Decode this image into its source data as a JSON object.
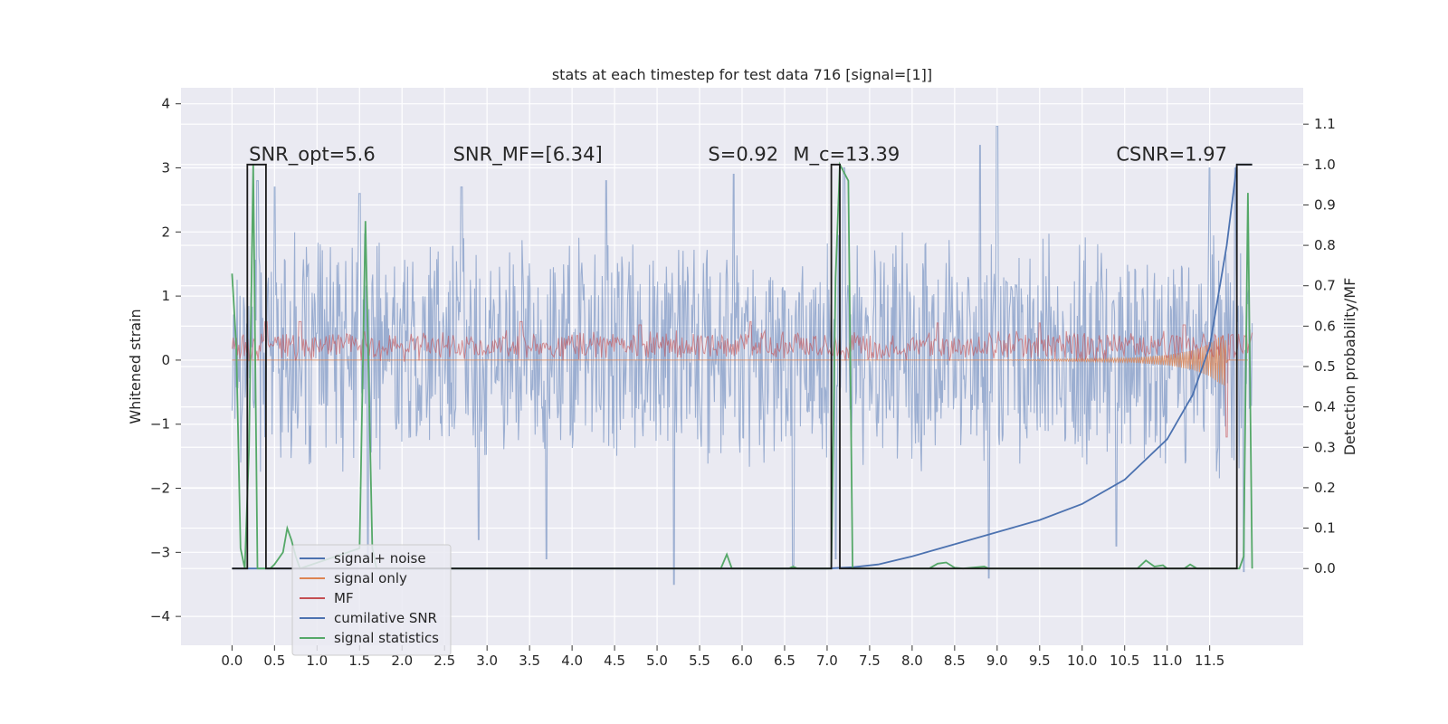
{
  "chart_data": {
    "type": "line",
    "title": "stats at each timestep for test data 716 [signal=[1]]",
    "xlabel": "",
    "ylabel_left": "Whitened strain",
    "ylabel_right": "Detection probability/MF",
    "xlim": [
      -0.6,
      12.6
    ],
    "ylim_left": [
      -4.45,
      4.25
    ],
    "ylim_right": [
      -0.19,
      1.19
    ],
    "x_ticks": [
      0.0,
      0.5,
      1.0,
      1.5,
      2.0,
      2.5,
      3.0,
      3.5,
      4.0,
      4.5,
      5.0,
      5.5,
      6.0,
      6.5,
      7.0,
      7.5,
      8.0,
      8.5,
      9.0,
      9.5,
      10.0,
      10.5,
      11.0,
      11.5
    ],
    "x_tick_labels": [
      "0.0",
      "0.5",
      "1.0",
      "1.5",
      "2.0",
      "2.5",
      "3.0",
      "3.5",
      "4.0",
      "4.5",
      "5.0",
      "5.5",
      "6.0",
      "6.5",
      "7.0",
      "7.5",
      "8.0",
      "8.5",
      "9.0",
      "9.5",
      "10.0",
      "10.5",
      "11.0",
      "11.5"
    ],
    "y_left_ticks": [
      -4,
      -3,
      -2,
      -1,
      0,
      1,
      2,
      3,
      4
    ],
    "y_left_tick_labels": [
      "−4",
      "−3",
      "−2",
      "−1",
      "0",
      "1",
      "2",
      "3",
      "4"
    ],
    "y_right_ticks": [
      0.0,
      0.1,
      0.2,
      0.3,
      0.4,
      0.5,
      0.6,
      0.7,
      0.8,
      0.9,
      1.0,
      1.1
    ],
    "y_right_tick_labels": [
      "0.0",
      "0.1",
      "0.2",
      "0.3",
      "0.4",
      "0.5",
      "0.6",
      "0.7",
      "0.8",
      "0.9",
      "1.0",
      "1.1"
    ],
    "grid": true,
    "legend_position": "lower-left",
    "annotations": [
      {
        "text": "SNR_opt=5.6",
        "x": 0.2,
        "y": 3.0
      },
      {
        "text": "SNR_MF=[6.34]",
        "x": 2.6,
        "y": 3.0
      },
      {
        "text": "S=0.92",
        "x": 5.6,
        "y": 3.0
      },
      {
        "text": "M_c=13.39",
        "x": 6.6,
        "y": 3.0
      },
      {
        "text": "CSNR=1.97",
        "x": 10.4,
        "y": 3.0
      }
    ],
    "series": [
      {
        "name": "signal+ noise",
        "axis": "left",
        "color": "#4c72b0",
        "style": "noise-band",
        "x_range": [
          0.0,
          12.0
        ],
        "typical_range": [
          -1.6,
          1.9
        ],
        "peaks_high": [
          [
            0.3,
            2.8
          ],
          [
            0.5,
            2.7
          ],
          [
            1.5,
            2.6
          ],
          [
            2.7,
            2.7
          ],
          [
            4.4,
            2.8
          ],
          [
            5.9,
            2.9
          ],
          [
            7.2,
            3.0
          ],
          [
            8.8,
            3.35
          ],
          [
            9.0,
            3.65
          ],
          [
            11.5,
            3.0
          ],
          [
            11.8,
            3.0
          ]
        ],
        "peaks_low": [
          [
            1.6,
            -3.1
          ],
          [
            2.9,
            -2.8
          ],
          [
            3.7,
            -3.1
          ],
          [
            5.2,
            -3.5
          ],
          [
            6.6,
            -3.2
          ],
          [
            7.1,
            -3.1
          ],
          [
            8.9,
            -3.4
          ],
          [
            10.4,
            -2.9
          ],
          [
            11.9,
            -3.3
          ]
        ]
      },
      {
        "name": "signal only",
        "axis": "left",
        "color": "#dd8452",
        "style": "chirp",
        "x_range": [
          0.0,
          11.95
        ],
        "points": [
          [
            0.0,
            0.0
          ],
          [
            9.0,
            0.0
          ],
          [
            10.0,
            0.02
          ],
          [
            10.5,
            0.03
          ],
          [
            11.0,
            0.08
          ],
          [
            11.3,
            0.15
          ],
          [
            11.5,
            0.25
          ],
          [
            11.6,
            0.35
          ],
          [
            11.68,
            0.4
          ],
          [
            11.7,
            0.0
          ]
        ]
      },
      {
        "name": "MF",
        "axis": "left",
        "color": "#c44e52",
        "style": "noise-band",
        "x_range": [
          0.0,
          12.0
        ],
        "typical_range": [
          0.0,
          0.45
        ],
        "peaks_high": [
          [
            0.4,
            0.6
          ],
          [
            0.8,
            0.6
          ],
          [
            3.4,
            0.6
          ],
          [
            4.8,
            0.55
          ],
          [
            6.1,
            0.6
          ],
          [
            8.3,
            0.58
          ],
          [
            9.5,
            0.58
          ],
          [
            11.2,
            0.55
          ],
          [
            11.7,
            1.0
          ]
        ],
        "peaks_low": [
          [
            11.7,
            -1.2
          ]
        ]
      },
      {
        "name": "cumilative SNR",
        "axis": "right",
        "color": "#4c72b0",
        "points": [
          [
            0.0,
            0.0
          ],
          [
            7.0,
            0.0
          ],
          [
            7.3,
            0.003
          ],
          [
            7.6,
            0.01
          ],
          [
            8.0,
            0.03
          ],
          [
            8.5,
            0.06
          ],
          [
            9.0,
            0.09
          ],
          [
            9.5,
            0.12
          ],
          [
            10.0,
            0.16
          ],
          [
            10.5,
            0.22
          ],
          [
            11.0,
            0.32
          ],
          [
            11.3,
            0.43
          ],
          [
            11.5,
            0.55
          ],
          [
            11.7,
            0.8
          ],
          [
            11.82,
            1.0
          ],
          [
            12.0,
            1.0
          ]
        ]
      },
      {
        "name": "signal statistics",
        "axis": "right",
        "color": "#55a868",
        "points": [
          [
            0.0,
            0.73
          ],
          [
            0.05,
            0.55
          ],
          [
            0.1,
            0.05
          ],
          [
            0.15,
            0.0
          ],
          [
            0.2,
            0.3
          ],
          [
            0.25,
            1.0
          ],
          [
            0.3,
            0.0
          ],
          [
            0.35,
            0.0
          ],
          [
            0.4,
            0.0
          ],
          [
            0.45,
            0.0
          ],
          [
            0.5,
            0.01
          ],
          [
            0.6,
            0.04
          ],
          [
            0.65,
            0.1
          ],
          [
            0.7,
            0.07
          ],
          [
            0.75,
            0.03
          ],
          [
            0.8,
            0.0
          ],
          [
            1.5,
            0.05
          ],
          [
            1.57,
            0.86
          ],
          [
            1.65,
            0.05
          ],
          [
            1.7,
            0.0
          ],
          [
            5.75,
            0.0
          ],
          [
            5.82,
            0.035
          ],
          [
            5.88,
            0.0
          ],
          [
            6.55,
            0.0
          ],
          [
            6.6,
            0.005
          ],
          [
            6.65,
            0.0
          ],
          [
            7.05,
            0.0
          ],
          [
            7.1,
            0.72
          ],
          [
            7.15,
            1.0
          ],
          [
            7.25,
            0.96
          ],
          [
            7.3,
            0.0
          ],
          [
            8.2,
            0.0
          ],
          [
            8.3,
            0.012
          ],
          [
            8.4,
            0.015
          ],
          [
            8.5,
            0.002
          ],
          [
            8.6,
            0.0
          ],
          [
            8.85,
            0.005
          ],
          [
            8.9,
            0.0
          ],
          [
            10.65,
            0.0
          ],
          [
            10.75,
            0.02
          ],
          [
            10.85,
            0.005
          ],
          [
            10.95,
            0.008
          ],
          [
            11.0,
            0.0
          ],
          [
            11.2,
            0.0
          ],
          [
            11.27,
            0.01
          ],
          [
            11.35,
            0.0
          ],
          [
            11.85,
            0.0
          ],
          [
            11.9,
            0.03
          ],
          [
            11.95,
            0.93
          ],
          [
            12.0,
            0.0
          ]
        ]
      },
      {
        "name": "",
        "axis": "right",
        "color": "#1a1a1a",
        "style": "step",
        "points": [
          [
            0.0,
            0.0
          ],
          [
            0.18,
            0.0
          ],
          [
            0.18,
            1.0
          ],
          [
            0.4,
            1.0
          ],
          [
            0.4,
            0.0
          ],
          [
            7.05,
            0.0
          ],
          [
            7.05,
            1.0
          ],
          [
            7.15,
            1.0
          ],
          [
            7.15,
            0.0
          ],
          [
            11.82,
            0.0
          ],
          [
            11.82,
            1.0
          ],
          [
            12.0,
            1.0
          ]
        ]
      }
    ]
  },
  "legend": {
    "items": [
      {
        "label": "signal+ noise",
        "color": "#4c72b0"
      },
      {
        "label": "signal only",
        "color": "#dd8452"
      },
      {
        "label": "MF",
        "color": "#c44e52"
      },
      {
        "label": "cumilative SNR",
        "color": "#4c72b0"
      },
      {
        "label": "signal statistics",
        "color": "#55a868"
      }
    ]
  },
  "colors": {
    "plot_background": "#eaeaf2",
    "grid": "#ffffff",
    "text": "#262626"
  }
}
